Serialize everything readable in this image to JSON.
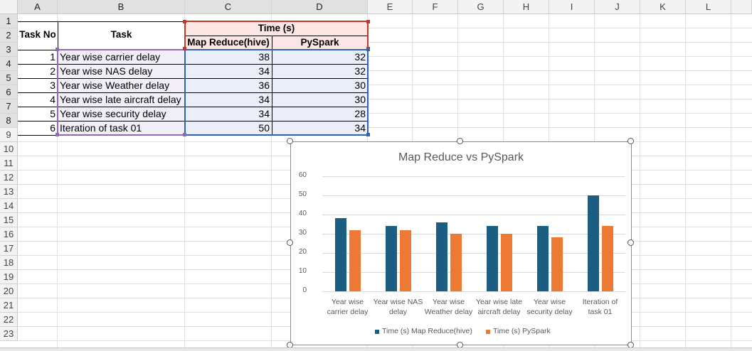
{
  "sheet": {
    "columns": [
      "A",
      "B",
      "C",
      "D",
      "E",
      "F",
      "G",
      "H",
      "I",
      "J",
      "K",
      "L"
    ],
    "rows": [
      "1",
      "2",
      "3",
      "4",
      "5",
      "6",
      "7",
      "8",
      "9",
      "10",
      "11",
      "12",
      "13",
      "14",
      "15",
      "16",
      "17",
      "18",
      "19",
      "20",
      "21",
      "22",
      "23"
    ]
  },
  "table": {
    "header_task_no": "Task No",
    "header_task": "Task",
    "header_time": "Time (s)",
    "header_mr": "Map Reduce(hive)",
    "header_ps": "PySpark",
    "rows": [
      {
        "no": "1",
        "task": "Year wise carrier delay",
        "mr": "38",
        "ps": "32"
      },
      {
        "no": "2",
        "task": "Year wise NAS delay",
        "mr": "34",
        "ps": "32"
      },
      {
        "no": "3",
        "task": "Year wise Weather delay",
        "mr": "36",
        "ps": "30"
      },
      {
        "no": "4",
        "task": "Year wise late aircraft delay",
        "mr": "34",
        "ps": "30"
      },
      {
        "no": "5",
        "task": "Year wise security delay",
        "mr": "34",
        "ps": "28"
      },
      {
        "no": "6",
        "task": "Iteration of task 01",
        "mr": "50",
        "ps": "34"
      }
    ]
  },
  "chart_data": {
    "type": "bar",
    "title": "Map Reduce vs PySpark",
    "categories": [
      [
        "Year wise",
        "carrier delay"
      ],
      [
        "Year wise NAS",
        "delay"
      ],
      [
        "Year wise",
        "Weather delay"
      ],
      [
        "Year wise late",
        "aircraft delay"
      ],
      [
        "Year wise",
        "security delay"
      ],
      [
        "Iteration of",
        "task 01"
      ]
    ],
    "series": [
      {
        "name": "Time (s) Map Reduce(hive)",
        "values": [
          38,
          34,
          36,
          34,
          34,
          50
        ],
        "color": "#1b5e82"
      },
      {
        "name": "Time (s) PySpark",
        "values": [
          32,
          32,
          30,
          30,
          28,
          34
        ],
        "color": "#ec7a34"
      }
    ],
    "yticks": [
      "0",
      "10",
      "20",
      "30",
      "40",
      "50",
      "60"
    ],
    "ylim": [
      0,
      60
    ],
    "grid": true,
    "legend": "bottom"
  }
}
